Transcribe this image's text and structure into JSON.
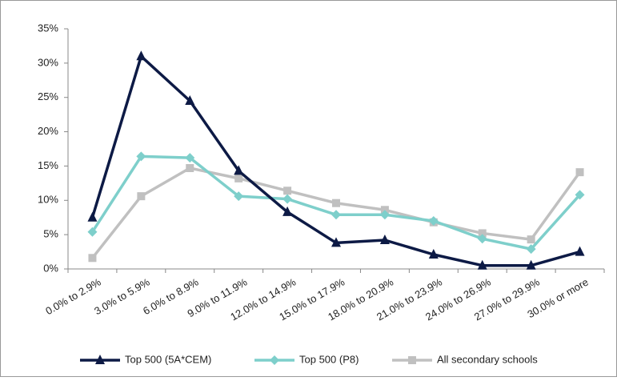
{
  "chart_data": {
    "type": "line",
    "categories": [
      "0.0% to 2.9%",
      "3.0% to 5.9%",
      "6.0% to 8.9%",
      "9.0% to 11.9%",
      "12.0% to 14.9%",
      "15.0% to 17.9%",
      "18.0% to 20.9%",
      "21.0% to 23.9%",
      "24.0% to 26.9%",
      "27.0% to 29.9%",
      "30.0% or more"
    ],
    "series": [
      {
        "name": "Top 500 (5A*CEM)",
        "color": "#0d1a45",
        "marker": "triangle",
        "values": [
          7.5,
          31.0,
          24.5,
          14.3,
          8.3,
          3.8,
          4.2,
          2.1,
          0.5,
          0.5,
          2.5
        ]
      },
      {
        "name": "Top 500 (P8)",
        "color": "#7ecfcb",
        "marker": "diamond",
        "values": [
          5.4,
          16.4,
          16.2,
          10.6,
          10.2,
          7.9,
          7.9,
          7.0,
          4.4,
          2.9,
          10.8
        ]
      },
      {
        "name": "All secondary schools",
        "color": "#c0c0c0",
        "marker": "square",
        "values": [
          1.6,
          10.6,
          14.7,
          13.2,
          11.4,
          9.6,
          8.6,
          6.8,
          5.2,
          4.3,
          14.1
        ]
      }
    ],
    "ylim": [
      0,
      35
    ],
    "yticks": [
      {
        "value": 0,
        "label": "0%"
      },
      {
        "value": 5,
        "label": "5%"
      },
      {
        "value": 10,
        "label": "10%"
      },
      {
        "value": 15,
        "label": "15%"
      },
      {
        "value": 20,
        "label": "20%"
      },
      {
        "value": 25,
        "label": "25%"
      },
      {
        "value": 30,
        "label": "30%"
      },
      {
        "value": 35,
        "label": "35%"
      }
    ],
    "grid": false,
    "legend": "bottom"
  }
}
